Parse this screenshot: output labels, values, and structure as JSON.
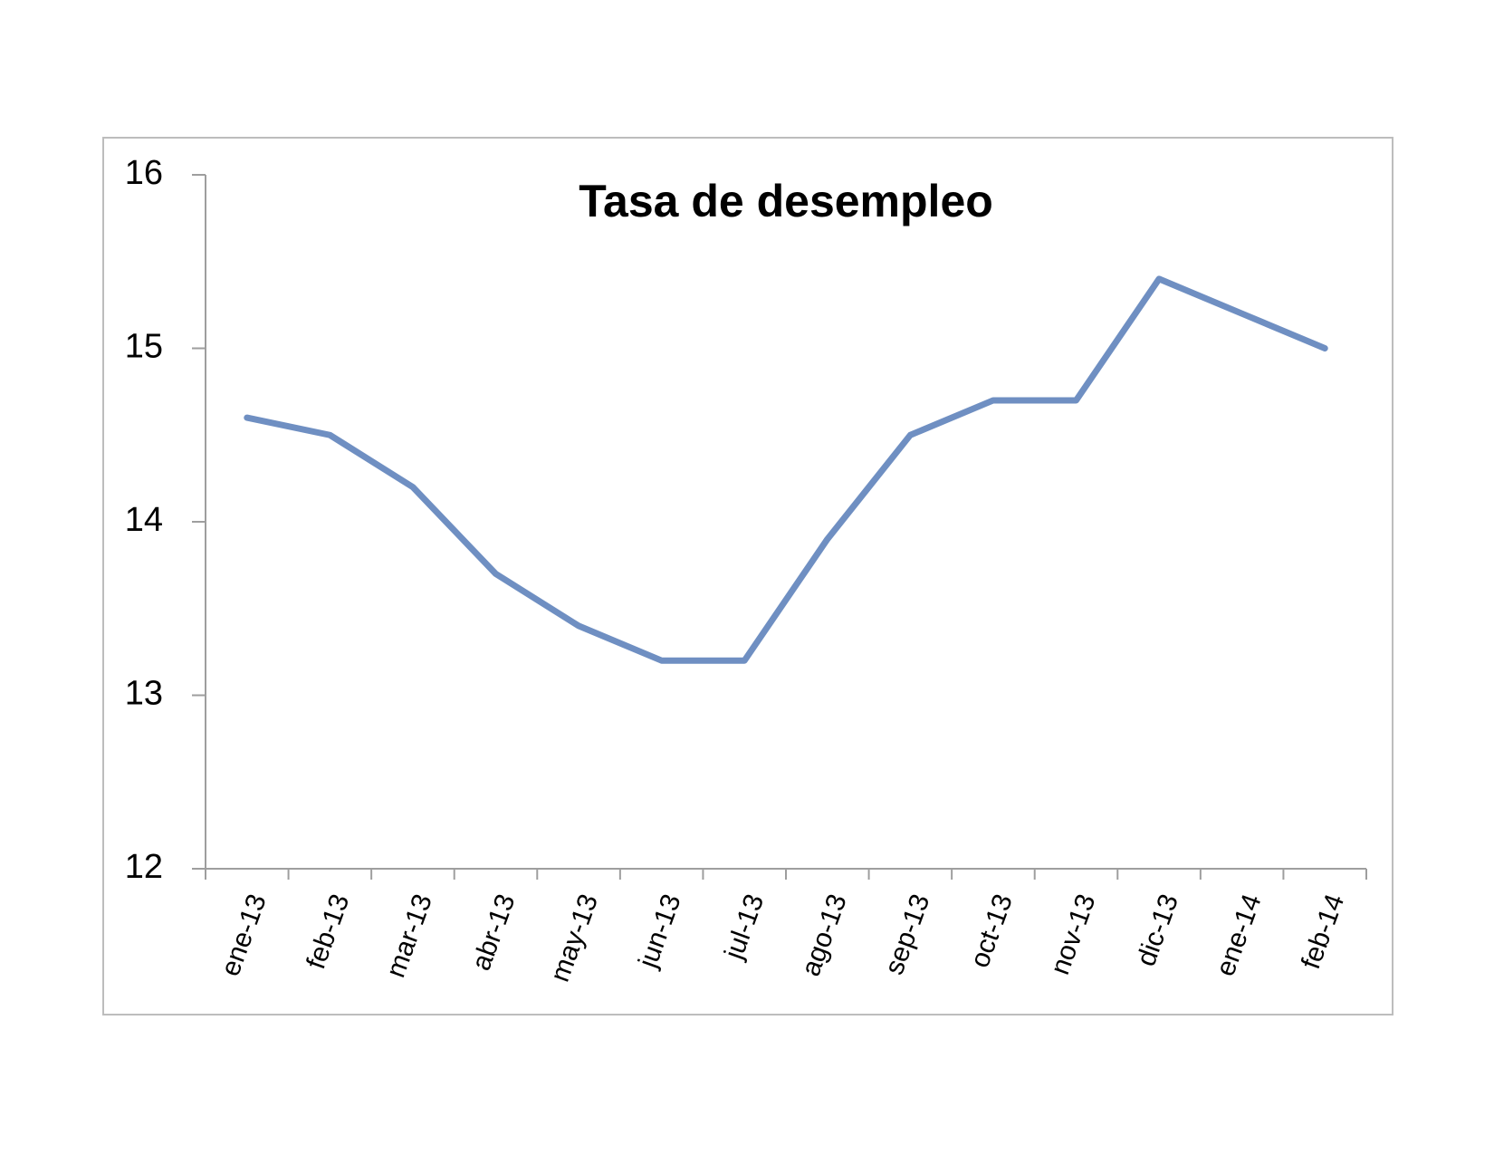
{
  "chart_data": {
    "type": "line",
    "title": "Tasa de desempleo",
    "categories": [
      "ene-13",
      "feb-13",
      "mar-13",
      "abr-13",
      "may-13",
      "jun-13",
      "jul-13",
      "ago-13",
      "sep-13",
      "oct-13",
      "nov-13",
      "dic-13",
      "ene-14",
      "feb-14"
    ],
    "values": [
      14.6,
      14.5,
      14.2,
      13.7,
      13.4,
      13.2,
      13.2,
      13.9,
      14.5,
      14.7,
      14.7,
      15.4,
      15.2,
      15.0
    ],
    "color": "#6f8fc2",
    "ylim": [
      12,
      16
    ],
    "yticks": [
      12,
      13,
      14,
      15,
      16
    ],
    "grid": false
  }
}
